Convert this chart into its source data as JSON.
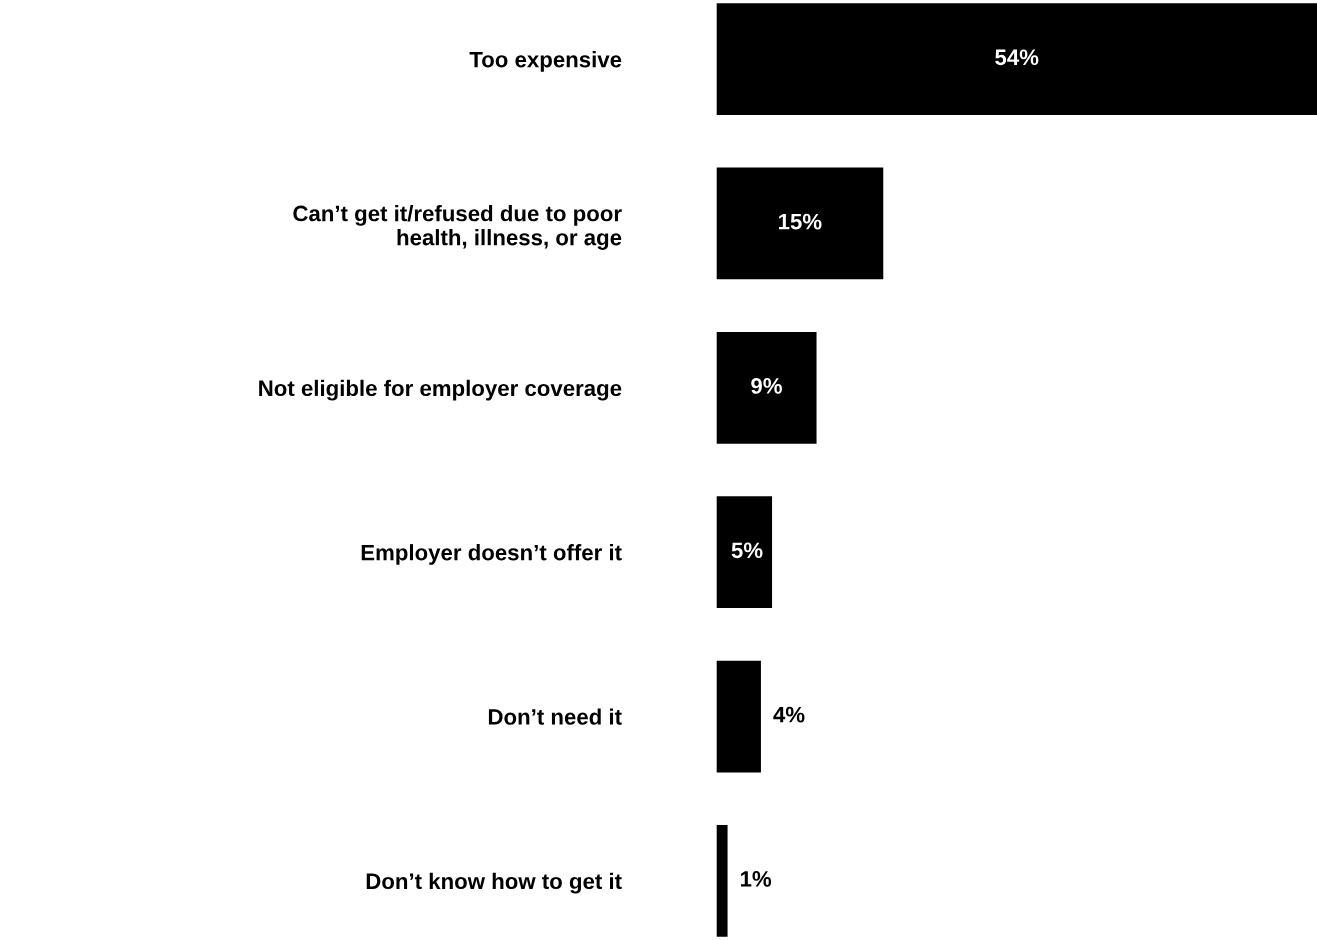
{
  "chart_data": {
    "type": "bar",
    "orientation": "horizontal",
    "categories": [
      "Too expensive",
      "Can’t get it/refused due to poor\nhealth, illness, or age",
      "Not eligible for employer coverage",
      "Employer doesn’t offer it",
      "Don’t need it",
      "Don’t know how to get it"
    ],
    "values": [
      54,
      15,
      9,
      5,
      4,
      1
    ],
    "value_labels": [
      "54%",
      "15%",
      "9%",
      "5%",
      "4%",
      "1%"
    ],
    "color": "#000000"
  }
}
